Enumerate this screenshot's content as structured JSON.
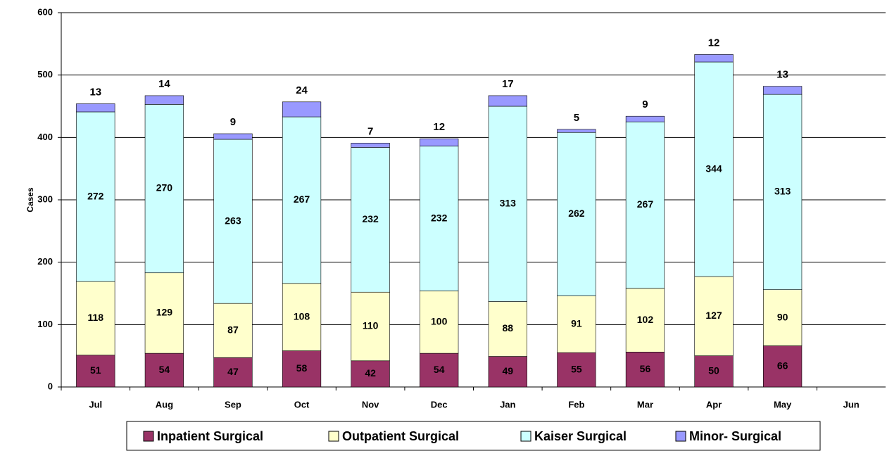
{
  "chart_data": {
    "type": "stacked_bar",
    "y_label": "Cases",
    "categories": [
      "Jul",
      "Aug",
      "Sep",
      "Oct",
      "Nov",
      "Dec",
      "Jan",
      "Feb",
      "Mar",
      "Apr",
      "May",
      "Jun"
    ],
    "series": [
      {
        "name": "Inpatient Surgical",
        "color": "#993366",
        "label_color": "#ffffff",
        "values": [
          51,
          54,
          47,
          58,
          42,
          54,
          49,
          55,
          56,
          50,
          66,
          null
        ]
      },
      {
        "name": "Outpatient Surgical",
        "color": "#ffffcc",
        "label_color": "#000000",
        "values": [
          118,
          129,
          87,
          108,
          110,
          100,
          88,
          91,
          102,
          127,
          90,
          null
        ]
      },
      {
        "name": "Kaiser Surgical",
        "color": "#ccffff",
        "label_color": "#000000",
        "values": [
          272,
          270,
          263,
          267,
          232,
          232,
          313,
          262,
          267,
          344,
          313,
          null
        ]
      },
      {
        "name": "Minor- Surgical",
        "color": "#9999ff",
        "label_color": "#000000",
        "values": [
          13,
          14,
          9,
          24,
          7,
          12,
          17,
          5,
          9,
          12,
          13,
          null
        ]
      }
    ],
    "ylim": [
      0,
      600
    ],
    "yticks": [
      0,
      100,
      200,
      300,
      400,
      500,
      600
    ],
    "grid": true
  }
}
